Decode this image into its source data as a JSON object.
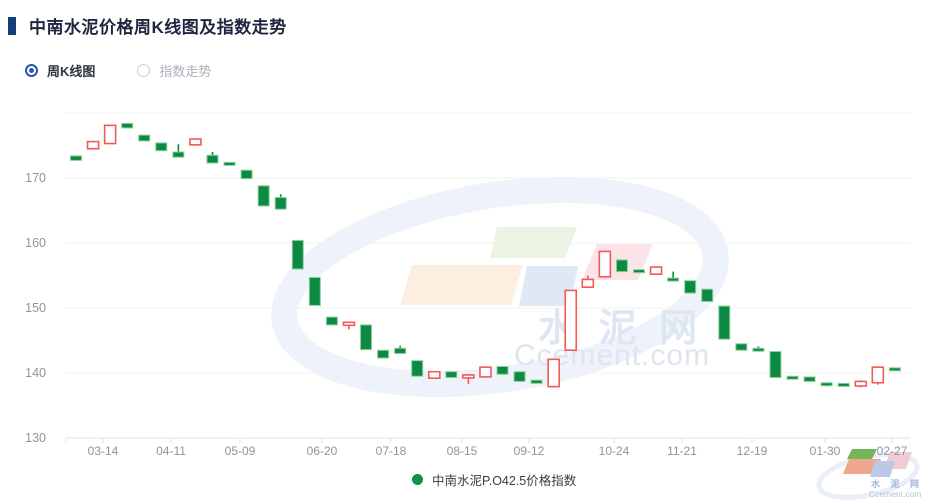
{
  "header": {
    "title": "中南水泥价格周K线图及指数走势"
  },
  "controls": {
    "options": [
      {
        "label": "周K线图",
        "selected": true
      },
      {
        "label": "指数走势",
        "selected": false
      }
    ]
  },
  "watermark": {
    "cn": "水 泥 网",
    "en": "Ccement.com"
  },
  "chart_data": {
    "type": "candlestick",
    "title": "中南水泥价格周K线图",
    "legend": {
      "label": "中南水泥P.O42.5价格指数"
    },
    "y_axis": {
      "min": 130,
      "max": 180,
      "ticks": [
        130,
        140,
        150,
        160,
        170
      ],
      "grid": true
    },
    "x_axis": {
      "labels": [
        "03-14",
        "04-11",
        "05-09",
        "06-20",
        "07-18",
        "08-15",
        "09-12",
        "10-24",
        "11-21",
        "12-19",
        "01-30",
        "02-27"
      ]
    },
    "colors": {
      "up": "#f05a5a",
      "up_fill": "#ffffff",
      "down": "#0c8a43",
      "down_border": "#8ed09b",
      "grid": "#f0f1f3",
      "axis": "#dfe2e8",
      "tick_text": "#8f949e",
      "legend_dot": "#0f9347",
      "accent": "#2a56a5"
    },
    "candles": [
      {
        "o": 173.4,
        "c": 172.7
      },
      {
        "o": 174.5,
        "c": 175.6
      },
      {
        "o": 175.3,
        "c": 178.1
      },
      {
        "o": 178.4,
        "c": 177.7
      },
      {
        "o": 176.6,
        "c": 175.7
      },
      {
        "o": 175.4,
        "c": 174.2
      },
      {
        "o": 174.0,
        "c": 173.2,
        "h": 175.2
      },
      {
        "o": 175.1,
        "c": 176.0
      },
      {
        "o": 173.5,
        "c": 172.3,
        "h": 174.0
      },
      {
        "o": 172.4,
        "c": 172.0
      },
      {
        "o": 171.2,
        "c": 169.9
      },
      {
        "o": 168.8,
        "c": 165.7
      },
      {
        "o": 167.0,
        "c": 165.2,
        "h": 167.5
      },
      {
        "o": 160.4,
        "c": 156.0
      },
      {
        "o": 154.7,
        "c": 150.4
      },
      {
        "o": 148.6,
        "c": 147.4
      },
      {
        "o": 147.5,
        "c": 147.8,
        "l": 146.7
      },
      {
        "o": 147.4,
        "c": 143.6
      },
      {
        "o": 143.5,
        "c": 142.3
      },
      {
        "o": 143.8,
        "c": 143.0,
        "h": 144.2
      },
      {
        "o": 141.9,
        "c": 139.5
      },
      {
        "o": 139.2,
        "c": 140.2
      },
      {
        "o": 140.2,
        "c": 139.3
      },
      {
        "o": 139.4,
        "c": 139.7,
        "l": 138.3
      },
      {
        "o": 139.4,
        "c": 140.9
      },
      {
        "o": 141.0,
        "c": 139.8
      },
      {
        "o": 140.2,
        "c": 138.7
      },
      {
        "o": 138.9,
        "c": 138.4
      },
      {
        "o": 137.9,
        "c": 142.1
      },
      {
        "o": 143.5,
        "c": 152.7
      },
      {
        "o": 153.2,
        "c": 154.4,
        "h": 155.0
      },
      {
        "o": 154.8,
        "c": 158.7
      },
      {
        "o": 157.4,
        "c": 155.6
      },
      {
        "o": 155.9,
        "c": 155.7
      },
      {
        "o": 155.2,
        "c": 156.3
      },
      {
        "o": 154.6,
        "c": 154.4,
        "h": 155.6
      },
      {
        "o": 154.2,
        "c": 152.3
      },
      {
        "o": 152.9,
        "c": 151.0
      },
      {
        "o": 150.3,
        "c": 145.2
      },
      {
        "o": 144.5,
        "c": 143.5
      },
      {
        "o": 143.8,
        "c": 143.5,
        "h": 144.1
      },
      {
        "o": 143.3,
        "c": 139.3
      },
      {
        "o": 139.5,
        "c": 139.3
      },
      {
        "o": 139.4,
        "c": 138.7
      },
      {
        "o": 138.5,
        "c": 138.3
      },
      {
        "o": 138.4,
        "c": 138.0
      },
      {
        "o": 138.0,
        "c": 138.7,
        "h": 138.9,
        "l": 137.8
      },
      {
        "o": 138.5,
        "c": 140.9,
        "l": 138.2
      },
      {
        "o": 140.8,
        "c": 140.5
      }
    ]
  }
}
